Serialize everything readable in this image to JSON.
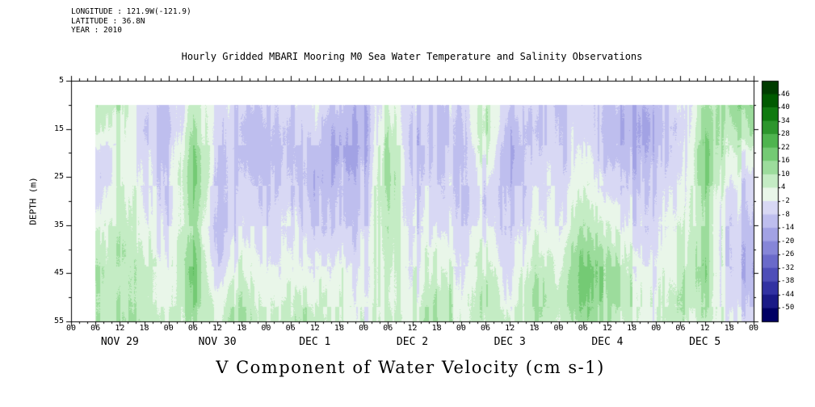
{
  "header": {
    "info_lines": [
      "LONGITUDE : 121.9W(-121.9)",
      "LATITUDE : 36.8N",
      "YEAR : 2010"
    ]
  },
  "chart_data": {
    "type": "heatmap",
    "title": "Hourly Gridded MBARI Mooring M0 Sea Water Temperature and Salinity Observations",
    "xlabel": "V Component of Water Velocity (cm s-1)",
    "ylabel": "DEPTH (m)",
    "ylim": [
      5,
      55
    ],
    "y_ticks": [
      "5",
      "15",
      "25",
      "35",
      "45",
      "55"
    ],
    "x_axis": {
      "total_hours": 168,
      "tick_step_hours": 6,
      "minor_tick_step_hours": 2,
      "tick_label_cycle": [
        "00",
        "06",
        "12",
        "18"
      ],
      "date_labels": [
        "NOV 29",
        "NOV 30",
        "DEC 1",
        "DEC 2",
        "DEC 3",
        "DEC 4",
        "DEC 5"
      ]
    },
    "colorbar": {
      "levels": [
        46,
        40,
        34,
        28,
        22,
        16,
        10,
        4,
        -2,
        -8,
        -14,
        -20,
        -26,
        -32,
        -38,
        -44,
        -50
      ],
      "colors": [
        "#003c00",
        "#005a00",
        "#0f7a0f",
        "#2d962d",
        "#4fb44f",
        "#74ca74",
        "#9cdc9c",
        "#c4ecc4",
        "#e9f6e9",
        "#d8d8f4",
        "#bebeee",
        "#a2a2e4",
        "#8686d8",
        "#6a6aca",
        "#4e4eb8",
        "#3232a2",
        "#1a1a86",
        "#000064"
      ]
    },
    "grid": {
      "hours_start": 6,
      "hours_step": 6,
      "depths": [
        10,
        15,
        20,
        25,
        30,
        35,
        40,
        45,
        50,
        55
      ],
      "values_by_time": [
        [
          10,
          6,
          -4,
          -6,
          -4,
          2,
          8,
          10,
          6,
          8
        ],
        [
          8,
          4,
          2,
          4,
          6,
          8,
          10,
          8,
          10,
          12
        ],
        [
          -6,
          -8,
          -6,
          -4,
          -2,
          0,
          2,
          6,
          4,
          8
        ],
        [
          -8,
          -10,
          -8,
          -6,
          -6,
          -4,
          -2,
          0,
          2,
          4
        ],
        [
          6,
          10,
          14,
          16,
          14,
          12,
          16,
          18,
          14,
          10
        ],
        [
          0,
          -2,
          -4,
          -6,
          -8,
          -10,
          -8,
          -4,
          2,
          6
        ],
        [
          -10,
          -12,
          -10,
          -8,
          -6,
          -4,
          0,
          4,
          8,
          10
        ],
        [
          -8,
          -10,
          -12,
          -10,
          -8,
          -6,
          -4,
          -2,
          0,
          2
        ],
        [
          -6,
          -8,
          -8,
          -6,
          -4,
          -2,
          0,
          2,
          6,
          10
        ],
        [
          -4,
          -6,
          -10,
          -14,
          -12,
          -10,
          -6,
          -2,
          2,
          6
        ],
        [
          -10,
          -14,
          -16,
          -12,
          -10,
          -8,
          -4,
          0,
          2,
          4
        ],
        [
          -12,
          -14,
          -12,
          -10,
          -8,
          -6,
          -4,
          -2,
          0,
          2
        ],
        [
          2,
          6,
          10,
          12,
          10,
          8,
          6,
          4,
          2,
          4
        ],
        [
          -6,
          -8,
          -10,
          -8,
          -6,
          -4,
          -2,
          0,
          2,
          4
        ],
        [
          -8,
          -10,
          -8,
          -6,
          -4,
          -2,
          2,
          6,
          10,
          12
        ],
        [
          -6,
          -8,
          -8,
          -6,
          -6,
          -4,
          -2,
          0,
          2,
          4
        ],
        [
          8,
          10,
          4,
          -2,
          -4,
          -2,
          2,
          6,
          10,
          8
        ],
        [
          -8,
          -12,
          -14,
          -12,
          -10,
          -8,
          -6,
          -4,
          -2,
          4
        ],
        [
          -6,
          -8,
          -6,
          -4,
          -2,
          0,
          4,
          8,
          12,
          10
        ],
        [
          -8,
          -6,
          -6,
          -4,
          -2,
          0,
          2,
          4,
          8,
          6
        ],
        [
          -4,
          -2,
          0,
          2,
          6,
          10,
          16,
          20,
          18,
          14
        ],
        [
          -10,
          -12,
          -10,
          -6,
          -2,
          4,
          10,
          14,
          12,
          8
        ],
        [
          -12,
          -14,
          -12,
          -10,
          -6,
          -4,
          0,
          4,
          6,
          4
        ],
        [
          -10,
          -12,
          -10,
          -8,
          -6,
          -4,
          -2,
          0,
          2,
          2
        ],
        [
          -6,
          -8,
          -6,
          -4,
          -2,
          0,
          2,
          4,
          6,
          4
        ],
        [
          10,
          14,
          18,
          16,
          14,
          12,
          14,
          16,
          12,
          8
        ],
        [
          12,
          8,
          4,
          0,
          -4,
          -6,
          -8,
          -6,
          -4,
          -2
        ],
        [
          14,
          10,
          2,
          -4,
          -8,
          -10,
          -12,
          -14,
          -10,
          -8
        ]
      ]
    }
  }
}
